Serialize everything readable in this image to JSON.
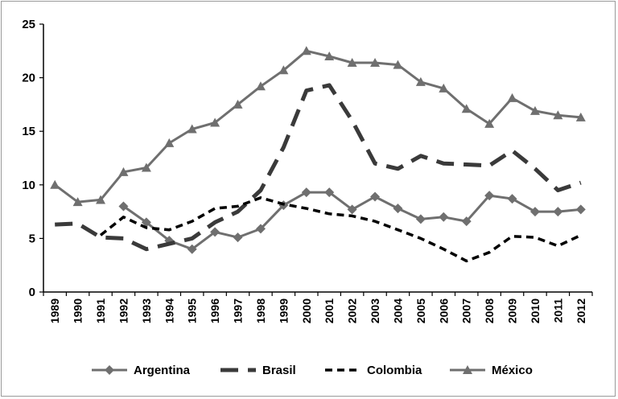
{
  "chart_data": {
    "type": "line",
    "title": "",
    "xlabel": "",
    "ylabel": "",
    "ylim": [
      0,
      25
    ],
    "yticks": [
      0,
      5,
      10,
      15,
      20,
      25
    ],
    "grid": false,
    "legend_position": "bottom",
    "categories": [
      "1989",
      "1990",
      "1991",
      "1992",
      "1993",
      "1994",
      "1995",
      "1996",
      "1997",
      "1998",
      "1999",
      "2000",
      "2001",
      "2002",
      "2003",
      "2004",
      "2005",
      "2006",
      "2007",
      "2008",
      "2009",
      "2010",
      "2011",
      "2012"
    ],
    "series": [
      {
        "name": "Argentina",
        "style": "solid-diamond",
        "color": "#6f6f6f",
        "values": [
          null,
          null,
          null,
          8.0,
          6.5,
          4.8,
          4.0,
          5.6,
          5.1,
          5.9,
          8.1,
          9.3,
          9.3,
          7.7,
          8.9,
          7.8,
          6.8,
          7.0,
          6.6,
          9.0,
          8.7,
          7.5,
          7.5,
          7.7
        ]
      },
      {
        "name": "Brasil",
        "style": "long-dash",
        "color": "#3a3a3a",
        "values": [
          6.3,
          6.4,
          5.1,
          5.0,
          4.0,
          4.5,
          5.0,
          6.5,
          7.5,
          9.5,
          13.5,
          18.8,
          19.3,
          16.0,
          12.0,
          11.5,
          12.7,
          12.0,
          11.9,
          11.8,
          13.2,
          11.5,
          9.5,
          10.2
        ]
      },
      {
        "name": "Colombia",
        "style": "short-dash",
        "color": "#000000",
        "values": [
          null,
          null,
          5.3,
          7.0,
          6.0,
          5.8,
          6.6,
          7.8,
          8.0,
          8.8,
          8.2,
          7.8,
          7.3,
          7.1,
          6.6,
          5.8,
          5.0,
          4.0,
          2.9,
          3.7,
          5.2,
          5.1,
          4.3,
          5.3
        ]
      },
      {
        "name": "México",
        "style": "solid-triangle",
        "color": "#6f6f6f",
        "values": [
          10.0,
          8.4,
          8.6,
          11.2,
          11.6,
          13.9,
          15.2,
          15.8,
          17.5,
          19.2,
          20.7,
          22.5,
          22.0,
          21.4,
          21.4,
          21.2,
          19.6,
          19.0,
          17.1,
          15.7,
          18.1,
          16.9,
          16.5,
          16.3
        ]
      }
    ]
  }
}
